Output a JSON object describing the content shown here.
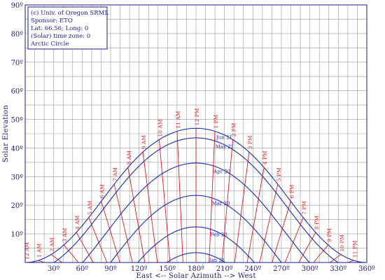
{
  "chart_data": {
    "type": "line",
    "title": "",
    "xlabel": "East <-- Solar Azimuth --> West",
    "ylabel": "Solar Elevation",
    "xlim": [
      0,
      360
    ],
    "ylim": [
      0,
      90
    ],
    "x_ticks": [
      {
        "value": 30,
        "label": "30º"
      },
      {
        "value": 60,
        "label": "60º"
      },
      {
        "value": 90,
        "label": "90º"
      },
      {
        "value": 120,
        "label": "120º"
      },
      {
        "value": 150,
        "label": "150º"
      },
      {
        "value": 180,
        "label": "180º"
      },
      {
        "value": 210,
        "label": "210º"
      },
      {
        "value": 240,
        "label": "240º"
      },
      {
        "value": 270,
        "label": "270º"
      },
      {
        "value": 300,
        "label": "300º"
      },
      {
        "value": 330,
        "label": "330º"
      },
      {
        "value": 360,
        "label": "360º"
      }
    ],
    "y_ticks": [
      {
        "value": 10,
        "label": "10º"
      },
      {
        "value": 20,
        "label": "20º"
      },
      {
        "value": 30,
        "label": "30º"
      },
      {
        "value": 40,
        "label": "40º"
      },
      {
        "value": 50,
        "label": "50º"
      },
      {
        "value": 60,
        "label": "60º"
      },
      {
        "value": 70,
        "label": "70º"
      },
      {
        "value": 80,
        "label": "80º"
      },
      {
        "value": 90,
        "label": "90º"
      }
    ],
    "grid": true,
    "info_box": {
      "position": "top-left",
      "lines": [
        "(c) Univ. of Oregon SRML",
        "Sponsor: ETO",
        "Lat: 66.56; Long: 0",
        "(Solar) time zone: 0",
        "Arctic Circle"
      ]
    },
    "latitude": 66.56,
    "series": [
      {
        "name": "Jun 21",
        "declination": 23.44
      },
      {
        "name": "May 21",
        "declination": 20.1
      },
      {
        "name": "Apr 20",
        "declination": 11.3
      },
      {
        "name": "Mar 20",
        "declination": 0.0
      },
      {
        "name": "Feb 20",
        "declination": -11.0
      },
      {
        "name": "Jan 21",
        "declination": -20.0
      },
      {
        "name": "Dec 21",
        "declination": -23.44
      }
    ],
    "date_label_hour": 13.3,
    "hour_lines": [
      {
        "hour": 0,
        "label": "12 AM"
      },
      {
        "hour": 1,
        "label": "1 AM"
      },
      {
        "hour": 2,
        "label": "2 AM"
      },
      {
        "hour": 3,
        "label": "3 AM"
      },
      {
        "hour": 4,
        "label": "4 AM"
      },
      {
        "hour": 5,
        "label": "5 AM"
      },
      {
        "hour": 6,
        "label": "6 AM"
      },
      {
        "hour": 7,
        "label": "7 AM"
      },
      {
        "hour": 8,
        "label": "8 AM"
      },
      {
        "hour": 9,
        "label": "9 AM"
      },
      {
        "hour": 10,
        "label": "10 AM"
      },
      {
        "hour": 11,
        "label": "11 AM"
      },
      {
        "hour": 12,
        "label": "12 PM"
      },
      {
        "hour": 13,
        "label": "1 PM"
      },
      {
        "hour": 14,
        "label": "2 PM"
      },
      {
        "hour": 15,
        "label": "3 PM"
      },
      {
        "hour": 16,
        "label": "4 PM"
      },
      {
        "hour": 17,
        "label": "5 PM"
      },
      {
        "hour": 18,
        "label": "6 PM"
      },
      {
        "hour": 19,
        "label": "7 PM"
      },
      {
        "hour": 20,
        "label": "8 PM"
      },
      {
        "hour": 21,
        "label": "9 PM"
      },
      {
        "hour": 22,
        "label": "10 PM"
      },
      {
        "hour": 23,
        "label": "11 PM"
      }
    ],
    "colors": {
      "date_curves": "#1a2ab8",
      "hour_lines": "#e01818",
      "grid": "#9a9a9a",
      "text": "#1a1a6e",
      "frame": "#1a1a8e"
    }
  }
}
